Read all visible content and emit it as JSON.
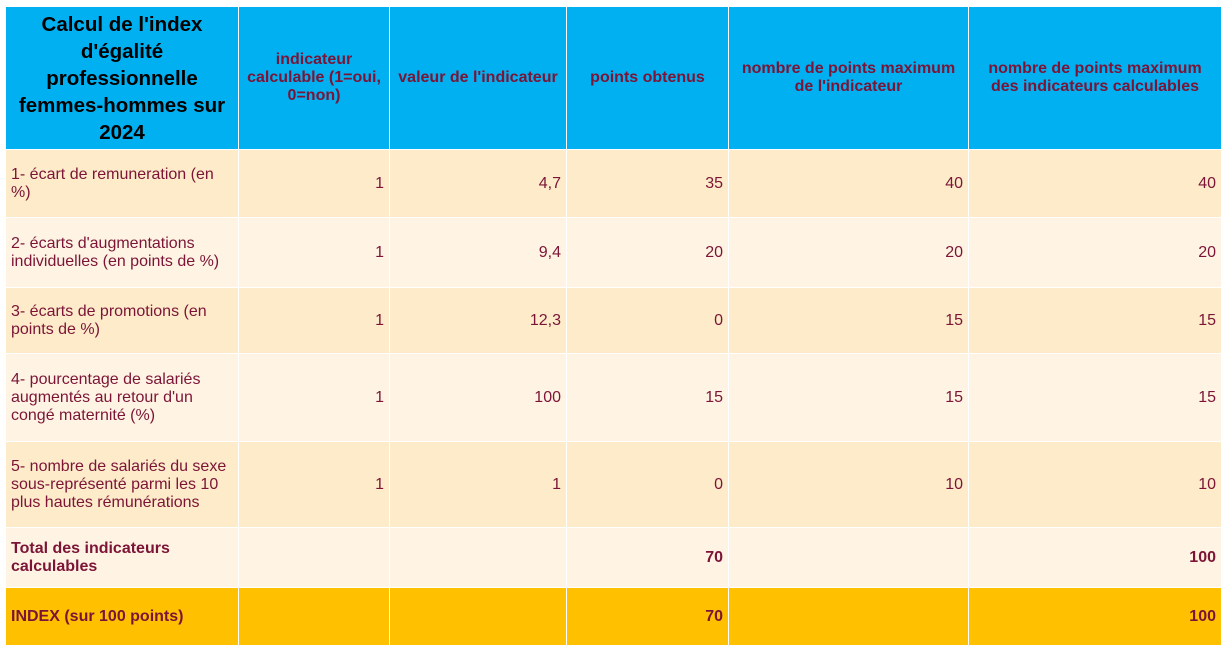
{
  "header": {
    "title": "Calcul de l'index d'égalité professionnelle femmes-hommes sur 2024",
    "columns": [
      "indicateur calculable (1=oui, 0=non)",
      "valeur de l'indicateur",
      "points obtenus",
      "nombre de points maximum de l'indicateur",
      "nombre de points maximum des indicateurs calculables"
    ]
  },
  "rows": [
    {
      "label": "1- écart de remuneration (en %)",
      "calculable": "1",
      "valeur": "4,7",
      "points": "35",
      "max_indicateur": "40",
      "max_calculables": "40"
    },
    {
      "label": "2- écarts d'augmentations individuelles (en points de %)",
      "calculable": "1",
      "valeur": "9,4",
      "points": "20",
      "max_indicateur": "20",
      "max_calculables": "20"
    },
    {
      "label": "3- écarts de promotions (en points de %)",
      "calculable": "1",
      "valeur": "12,3",
      "points": "0",
      "max_indicateur": "15",
      "max_calculables": "15"
    },
    {
      "label": "4- pourcentage de salariés augmentés au retour d'un congé maternité (%)",
      "calculable": "1",
      "valeur": "100",
      "points": "15",
      "max_indicateur": "15",
      "max_calculables": "15"
    },
    {
      "label": "5- nombre de salariés du sexe sous-représenté parmi les 10 plus hautes rémunérations",
      "calculable": "1",
      "valeur": "1",
      "points": "0",
      "max_indicateur": "10",
      "max_calculables": "10"
    }
  ],
  "total": {
    "label": "Total des indicateurs calculables",
    "points": "70",
    "max_calculables": "100"
  },
  "index": {
    "label": "INDEX (sur 100 points)",
    "points": "70",
    "max_calculables": "100"
  },
  "colors": {
    "header_bg": "#00b0f0",
    "header_text": "#7b1436",
    "row_odd": "#fdebca",
    "row_even": "#fff4e3",
    "index_bg": "#ffc000"
  }
}
